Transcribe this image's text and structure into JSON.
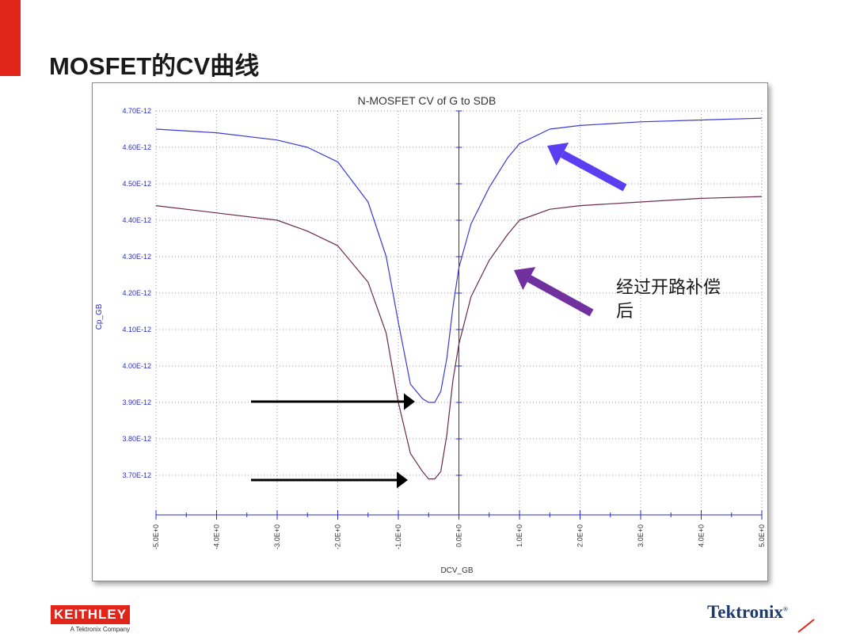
{
  "slide": {
    "title": "MOSFET的CV曲线",
    "annotation_line1": "经过开路补偿",
    "annotation_line2": "后"
  },
  "logos": {
    "keithley": "KEITHLEY",
    "keithley_sub": "A Tektronix Company",
    "tektronix": "Tektronix",
    "tektronix_mark": "®"
  },
  "colors": {
    "accent_red": "#e1251b",
    "series_blue": "#3a3ad6",
    "series_maroon": "#6b2a4a",
    "axis_blue": "#2a2ad0",
    "arrow_blue": "#5a3ef0",
    "arrow_purple": "#7030a0",
    "arrow_black": "#000000",
    "grid": "#9a9a9a"
  },
  "chart_data": {
    "type": "line",
    "title": "N-MOSFET CV of G to SDB",
    "xlabel": "DCV_GB",
    "ylabel": "Cp_GB",
    "xlim": [
      -5.0,
      5.0
    ],
    "ylim": [
      3.6e-12,
      4.7e-12
    ],
    "grid": true,
    "x_ticks": [
      -5,
      -4,
      -3,
      -2,
      -1,
      0,
      1,
      2,
      3,
      4,
      5
    ],
    "x_tick_labels": [
      "-5.0E+0",
      "-4.0E+0",
      "-3.0E+0",
      "-2.0E+0",
      "-1.0E+0",
      "0.0E+0",
      "1.0E+0",
      "2.0E+0",
      "3.0E+0",
      "4.0E+0",
      "5.0E+0"
    ],
    "y_ticks": [
      4.7e-12,
      4.6e-12,
      4.5e-12,
      4.4e-12,
      4.3e-12,
      4.2e-12,
      4.1e-12,
      4e-12,
      3.9e-12,
      3.8e-12,
      3.7e-12
    ],
    "y_tick_labels": [
      "4.70E-12",
      "4.60E-12",
      "4.50E-12",
      "4.40E-12",
      "4.30E-12",
      "4.20E-12",
      "4.10E-12",
      "4.00E-12",
      "3.90E-12",
      "3.80E-12",
      "3.70E-12"
    ],
    "series": [
      {
        "color": "#3a3ad6",
        "x": [
          -5.0,
          -4.0,
          -3.0,
          -2.5,
          -2.0,
          -1.5,
          -1.2,
          -1.0,
          -0.8,
          -0.6,
          -0.5,
          -0.4,
          -0.3,
          -0.2,
          -0.1,
          0.0,
          0.2,
          0.5,
          0.8,
          1.0,
          1.5,
          2.0,
          3.0,
          4.0,
          5.0
        ],
        "y": [
          4.65e-12,
          4.64e-12,
          4.62e-12,
          4.6e-12,
          4.56e-12,
          4.45e-12,
          4.3e-12,
          4.12e-12,
          3.95e-12,
          3.91e-12,
          3.9e-12,
          3.9e-12,
          3.93e-12,
          4.02e-12,
          4.16e-12,
          4.27e-12,
          4.39e-12,
          4.49e-12,
          4.57e-12,
          4.61e-12,
          4.65e-12,
          4.66e-12,
          4.67e-12,
          4.675e-12,
          4.68e-12
        ]
      },
      {
        "color": "#6b2a4a",
        "x": [
          -5.0,
          -4.0,
          -3.0,
          -2.5,
          -2.0,
          -1.5,
          -1.2,
          -1.0,
          -0.8,
          -0.6,
          -0.5,
          -0.4,
          -0.3,
          -0.2,
          -0.1,
          0.0,
          0.2,
          0.5,
          0.8,
          1.0,
          1.5,
          2.0,
          3.0,
          4.0,
          5.0
        ],
        "y": [
          4.44e-12,
          4.42e-12,
          4.4e-12,
          4.37e-12,
          4.33e-12,
          4.23e-12,
          4.09e-12,
          3.9e-12,
          3.76e-12,
          3.71e-12,
          3.69e-12,
          3.69e-12,
          3.71e-12,
          3.81e-12,
          3.96e-12,
          4.06e-12,
          4.19e-12,
          4.29e-12,
          4.36e-12,
          4.4e-12,
          4.43e-12,
          4.44e-12,
          4.45e-12,
          4.46e-12,
          4.465e-12
        ]
      }
    ]
  }
}
